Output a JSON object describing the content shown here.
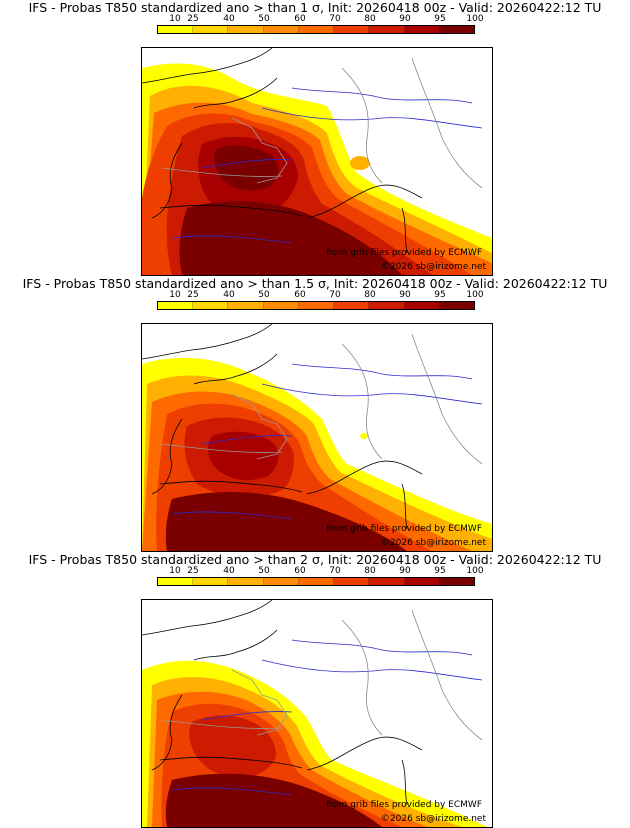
{
  "colorbar": {
    "ticks": [
      "10",
      "25",
      "40",
      "50",
      "60",
      "70",
      "80",
      "90",
      "95",
      "100"
    ],
    "colors": [
      "#ffff00",
      "#ffd700",
      "#ffb000",
      "#ff8c00",
      "#ff6a00",
      "#ee3f00",
      "#cc1b00",
      "#a80000",
      "#7a0000"
    ]
  },
  "panels": [
    {
      "title": "IFS - Probas T850  standardized ano > than 1 σ, Init: 20260418 00z - Valid: 20260422:12 TU",
      "credit_source": "from grib files provided by ECMWF",
      "credit_copyright": "©2026 sb@irizome.net"
    },
    {
      "title": "IFS - Probas T850  standardized ano > than 1.5 σ, Init: 20260418 00z - Valid: 20260422:12 TU",
      "credit_source": "from grib files provided by ECMWF",
      "credit_copyright": "©2026 sb@irizome.net"
    },
    {
      "title": "IFS - Probas T850  standardized ano > than 2 σ, Init: 20260418 00z - Valid: 20260422:12 TU",
      "credit_source": "from grib files provided by ECMWF",
      "credit_copyright": "©2026 sb@irizome.net"
    }
  ]
}
